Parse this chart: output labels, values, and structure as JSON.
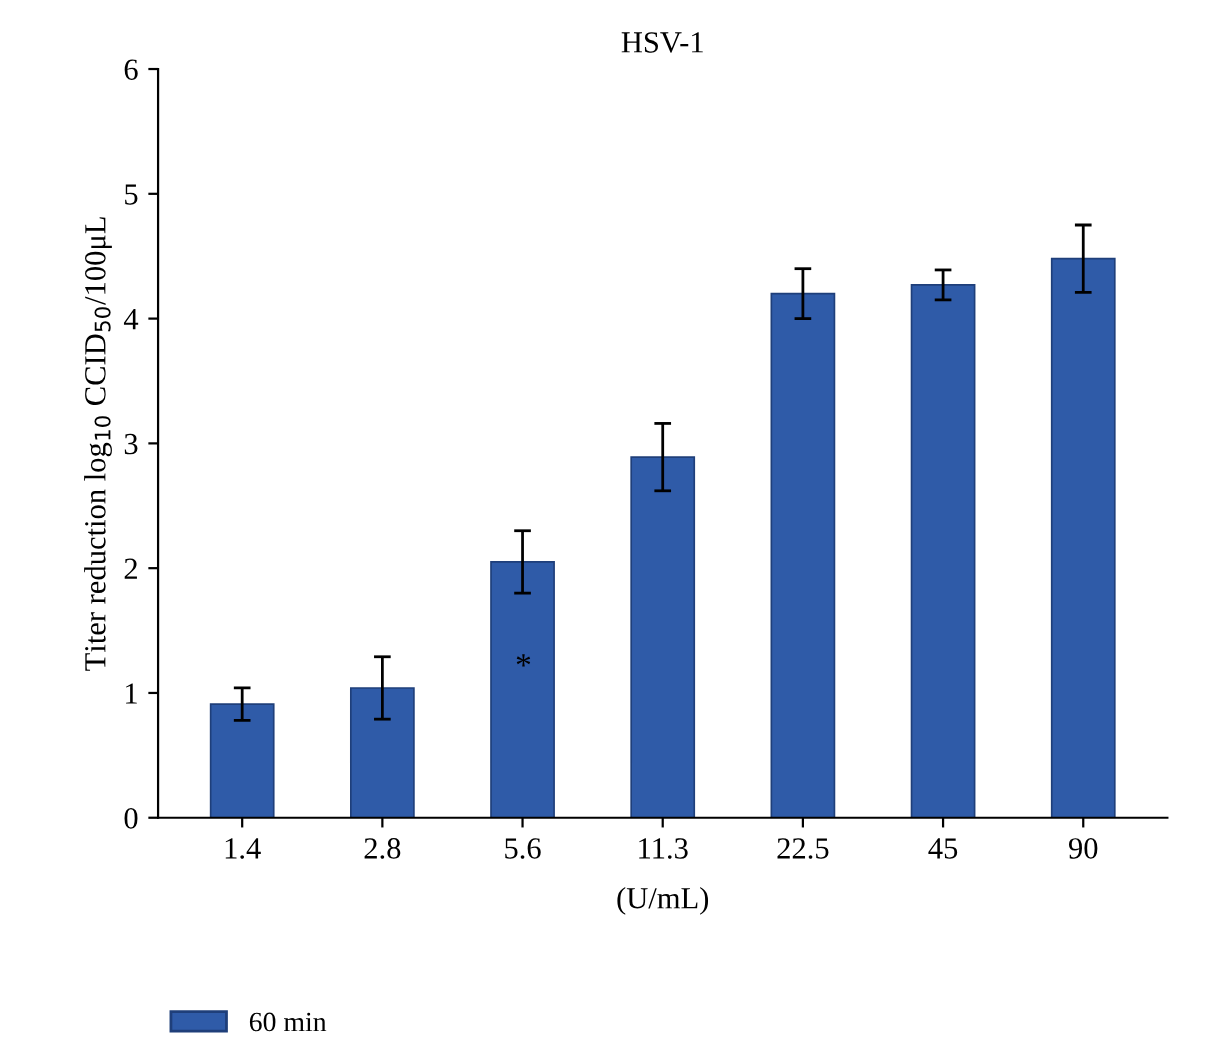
{
  "chart_data": {
    "type": "bar",
    "title": "HSV-1",
    "xlabel": "(U/mL)",
    "ylabel": "Titer reduction log$_{10}$ CCID$_{50}$/100μL",
    "categories": [
      "1.4",
      "2.8",
      "5.6",
      "11.3",
      "22.5",
      "45",
      "90"
    ],
    "series": [
      {
        "name": "60 min",
        "color": "#2f5ba8",
        "values": [
          0.91,
          1.04,
          2.05,
          2.89,
          4.2,
          4.27,
          4.48
        ],
        "errors": [
          0.13,
          0.25,
          0.25,
          0.27,
          0.2,
          0.12,
          0.27
        ]
      }
    ],
    "ylim": [
      0,
      6
    ],
    "yticks": [
      0,
      1,
      2,
      3,
      4,
      5,
      6
    ],
    "grid": false,
    "legend": "bottom left",
    "annotations": [
      "*"
    ]
  }
}
